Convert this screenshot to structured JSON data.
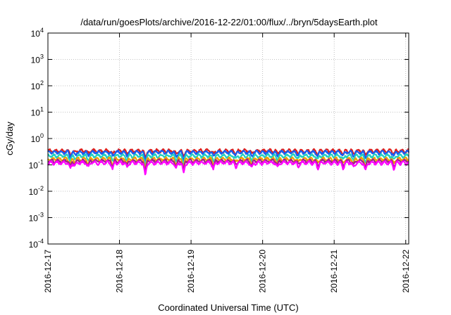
{
  "chart_data": {
    "type": "line",
    "title": "/data/run/goesPlots/archive/2016-12-22/01:00/flux/../bryn/5daysEarth.plot",
    "xlabel": "Coordinated Universal Time (UTC)",
    "ylabel": "cGy/day",
    "yscale": "log",
    "ylim": [
      0.0001,
      10000
    ],
    "y_ticks": [
      {
        "base": "10",
        "exp": "-4",
        "value": 0.0001
      },
      {
        "base": "10",
        "exp": "-3",
        "value": 0.001
      },
      {
        "base": "10",
        "exp": "-2",
        "value": 0.01
      },
      {
        "base": "10",
        "exp": "-1",
        "value": 0.1
      },
      {
        "base": "10",
        "exp": "0",
        "value": 1
      },
      {
        "base": "10",
        "exp": "1",
        "value": 10
      },
      {
        "base": "10",
        "exp": "2",
        "value": 100
      },
      {
        "base": "10",
        "exp": "3",
        "value": 1000
      },
      {
        "base": "10",
        "exp": "4",
        "value": 10000
      }
    ],
    "xlim": [
      "2016-12-17",
      "2016-12-22 01:00"
    ],
    "x_ticks": [
      "2016-12-17",
      "2016-12-18",
      "2016-12-19",
      "2016-12-20",
      "2016-12-21",
      "2016-12-22"
    ],
    "grid": true,
    "series": [
      {
        "color": "#e0201c",
        "baseline": 0.34,
        "dip_depth": 0.12
      },
      {
        "color": "#1a5cf0",
        "baseline": 0.3,
        "dip_depth": 0.12
      },
      {
        "color": "#22d0c0",
        "baseline": 0.22,
        "dip_depth": 0.1
      },
      {
        "color": "#f0a000",
        "baseline": 0.165,
        "dip_depth": 0.08
      },
      {
        "color": "#a0208c",
        "baseline": 0.14,
        "dip_depth": 0.07
      },
      {
        "color": "#ff00ff",
        "baseline": 0.12,
        "dip_depth": 0.06
      }
    ],
    "dips": [
      {
        "x": "2016-12-17 07:30",
        "depth": 0.45
      },
      {
        "x": "2016-12-17 09:00",
        "depth": 0.3
      },
      {
        "x": "2016-12-17 13:30",
        "depth": 0.35
      },
      {
        "x": "2016-12-17 21:40",
        "depth": 0.45
      },
      {
        "x": "2016-12-18 02:30",
        "depth": 0.35
      },
      {
        "x": "2016-12-18 08:40",
        "depth": 0.75
      },
      {
        "x": "2016-12-18 19:00",
        "depth": 0.45
      },
      {
        "x": "2016-12-18 21:30",
        "depth": 0.65
      },
      {
        "x": "2016-12-19 07:30",
        "depth": 0.45
      },
      {
        "x": "2016-12-19 15:00",
        "depth": 0.3
      },
      {
        "x": "2016-12-19 20:20",
        "depth": 0.4
      },
      {
        "x": "2016-12-20 05:00",
        "depth": 0.35
      },
      {
        "x": "2016-12-20 12:00",
        "depth": 0.3
      },
      {
        "x": "2016-12-20 18:30",
        "depth": 0.4
      },
      {
        "x": "2016-12-21 03:00",
        "depth": 0.4
      },
      {
        "x": "2016-12-21 06:30",
        "depth": 0.35
      },
      {
        "x": "2016-12-21 10:30",
        "depth": 0.55
      },
      {
        "x": "2016-12-21 20:00",
        "depth": 0.4
      }
    ]
  }
}
